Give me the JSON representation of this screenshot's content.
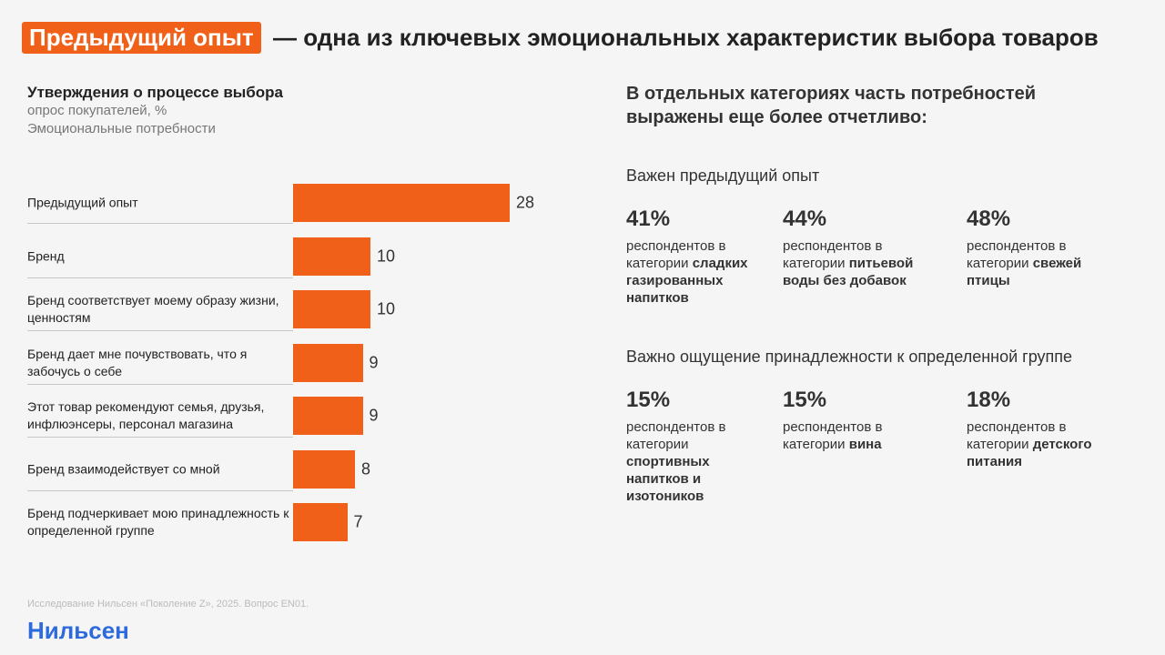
{
  "header": {
    "highlight": "Предыдущий опыт",
    "title": "— одна из ключевых эмоциональных характеристик выбора товаров"
  },
  "chart_data": {
    "type": "bar",
    "orientation": "horizontal",
    "title": "Утверждения о процессе выбора",
    "subtitle": [
      "опрос покупателей, %",
      "Эмоциональные потребности"
    ],
    "categories": [
      "Предыдущий опыт",
      "Бренд",
      "Бренд соответствует моему образу жизни, ценностям",
      "Бренд дает мне почувствовать, что я забочусь о себе",
      "Этот товар рекомендуют семья, друзья, инфлюэнсеры, персонал магазина",
      "Бренд взаимодействует со мной",
      "Бренд подчеркивает мою принадлежность к определенной группе"
    ],
    "values": [
      28,
      10,
      10,
      9,
      9,
      8,
      7
    ],
    "color": "#f06019"
  },
  "panel": {
    "title": "В отдельных категориях часть потребностей выражены еще более отчетливо:",
    "groups": [
      {
        "title": "Важен предыдущий опыт",
        "items": [
          {
            "value": "41%",
            "text": "респондентов в категории",
            "bold": "сладких газированных напитков"
          },
          {
            "value": "44%",
            "text": "респондентов в категории",
            "bold": "питьевой воды без добавок"
          },
          {
            "value": "48%",
            "text": "респондентов в категории",
            "bold": "свежей птицы"
          }
        ]
      },
      {
        "title": "Важно ощущение принадлежности к определенной группе",
        "items": [
          {
            "value": "15%",
            "text": "респондентов в категории",
            "bold": "спортивных напитков и изотоников"
          },
          {
            "value": "15%",
            "text": "респондентов в категории",
            "bold": "вина"
          },
          {
            "value": "18%",
            "text": "респондентов в категории",
            "bold": "детского питания"
          }
        ]
      }
    ]
  },
  "footer": {
    "source": "Исследование Нильсен «Поколение Z», 2025. Вопрос EN01.",
    "logo": "Нильсен"
  }
}
